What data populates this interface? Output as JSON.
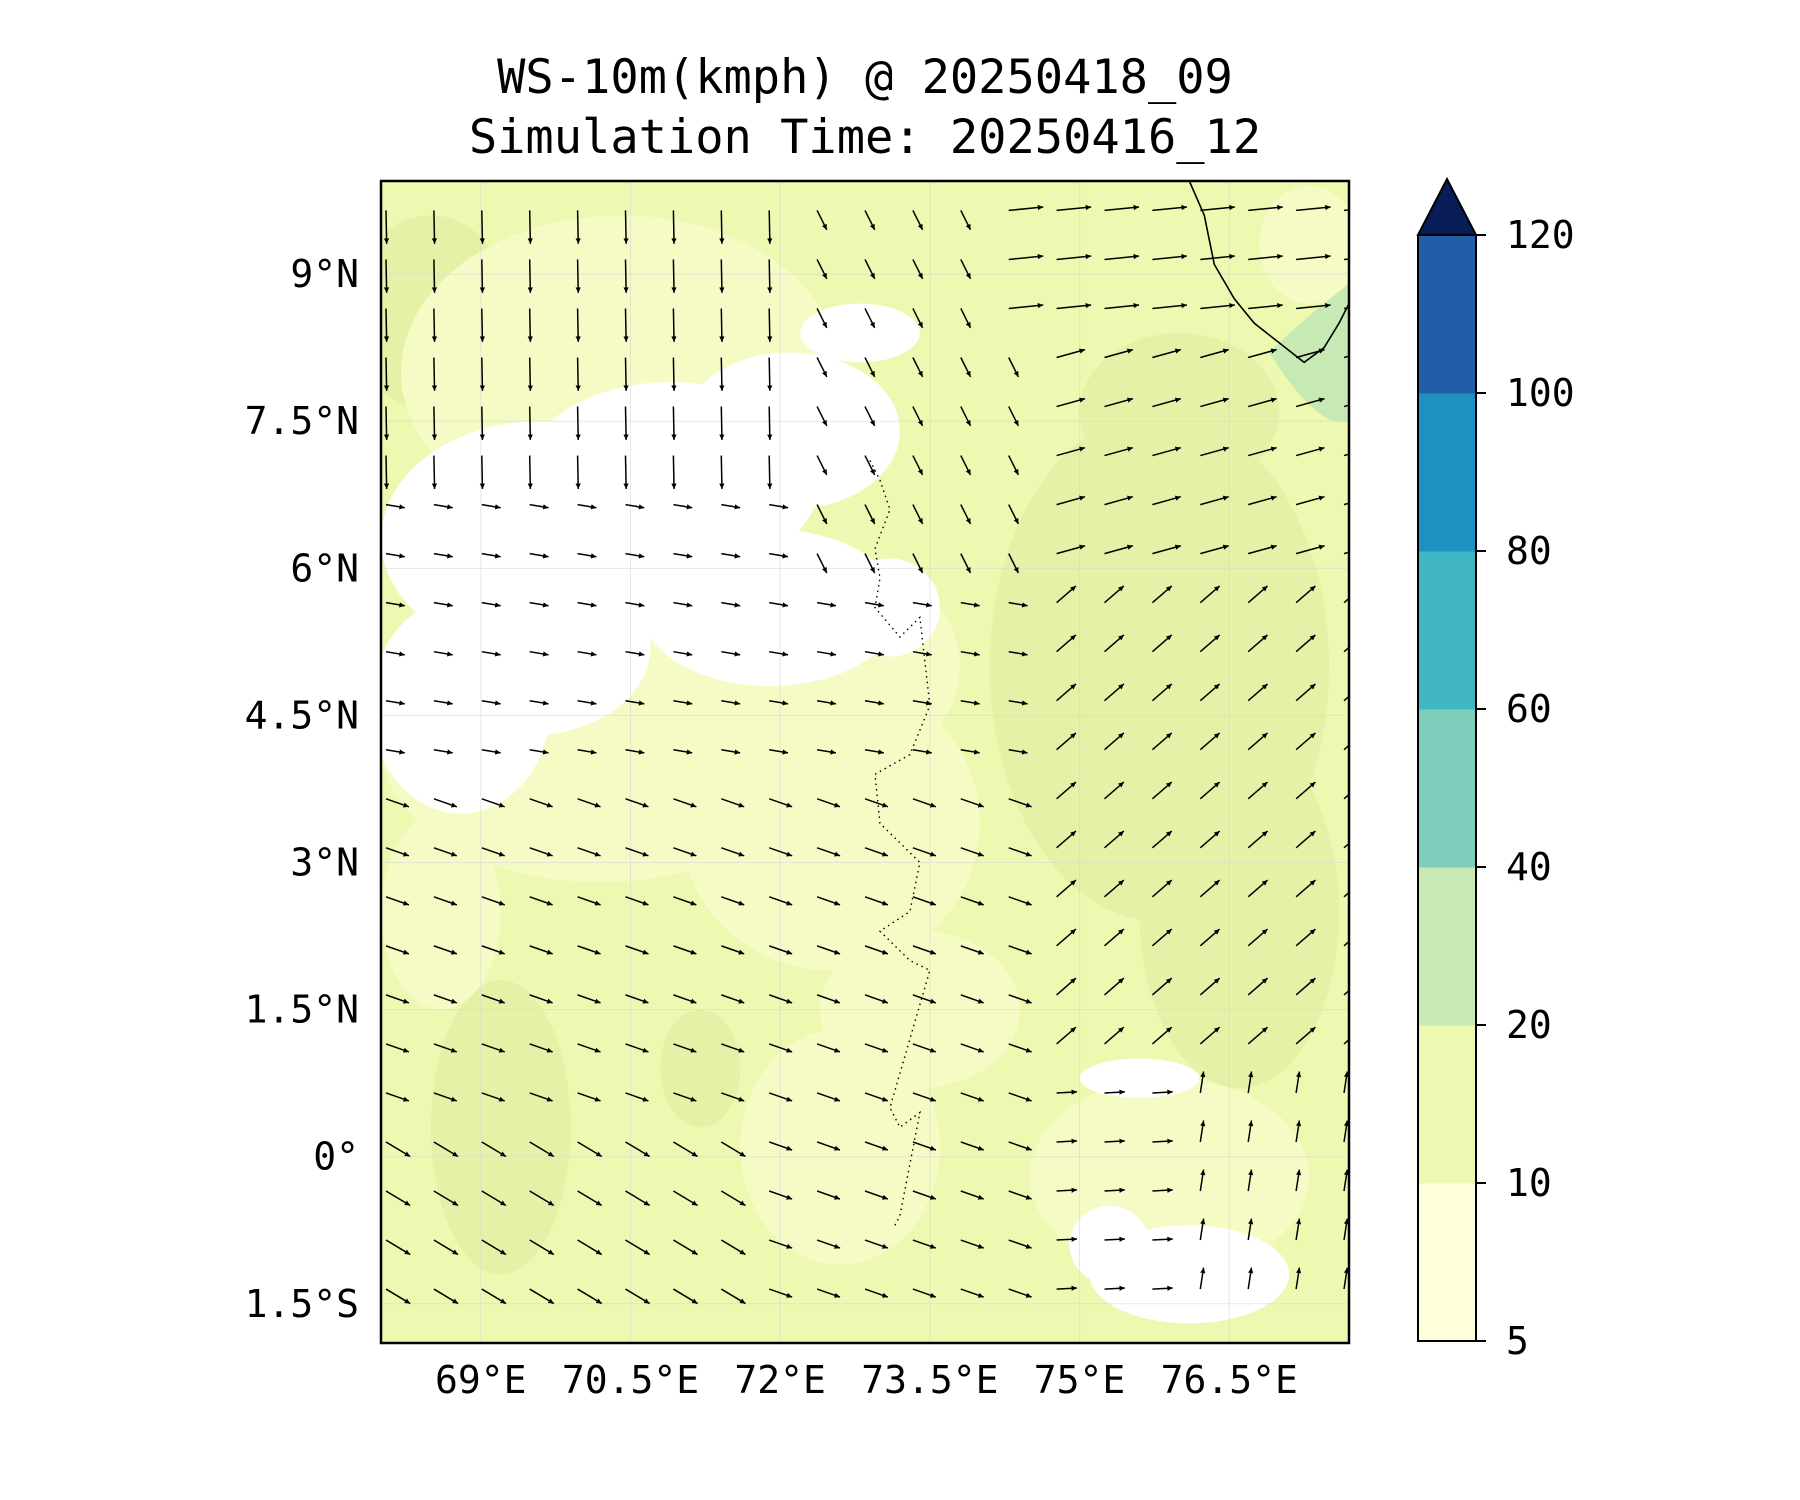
{
  "title": {
    "line1": "WS-10m(kmph) @ 20250418_09",
    "line2": "Simulation Time: 20250416_12"
  },
  "map": {
    "lon_range": [
      68.0,
      77.7
    ],
    "lat_range": [
      -1.9,
      9.95
    ],
    "x_ticks": [
      {
        "value": 69.0,
        "label": "69°E"
      },
      {
        "value": 70.5,
        "label": "70.5°E"
      },
      {
        "value": 72.0,
        "label": "72°E"
      },
      {
        "value": 73.5,
        "label": "73.5°E"
      },
      {
        "value": 75.0,
        "label": "75°E"
      },
      {
        "value": 76.5,
        "label": "76.5°E"
      }
    ],
    "y_ticks": [
      {
        "value": 9.0,
        "label": "9°N"
      },
      {
        "value": 7.5,
        "label": "7.5°N"
      },
      {
        "value": 6.0,
        "label": "6°N"
      },
      {
        "value": 4.5,
        "label": "4.5°N"
      },
      {
        "value": 3.0,
        "label": "3°N"
      },
      {
        "value": 1.5,
        "label": "1.5°N"
      },
      {
        "value": 0.0,
        "label": "0°"
      },
      {
        "value": -1.5,
        "label": "1.5°S"
      }
    ],
    "gridlines": true,
    "field": "wind speed 10 m",
    "vectors": "wind direction arrows"
  },
  "colorbar": {
    "levels": [
      5,
      10,
      20,
      40,
      60,
      80,
      100,
      120
    ],
    "colors": [
      "#ffffd9",
      "#edf8b1",
      "#c7e9b4",
      "#7fcdbb",
      "#41b6c4",
      "#1d91c0",
      "#225ea8",
      "#253494"
    ],
    "extend_color": "#081d58",
    "labels": [
      "5",
      "10",
      "20",
      "40",
      "60",
      "80",
      "100",
      "120"
    ]
  },
  "chart_data": {
    "type": "heatmap",
    "title": "WS-10m(kmph) @ 20250418_09",
    "subtitle": "Simulation Time: 20250416_12",
    "xlabel": "",
    "ylabel": "",
    "xlim": [
      68.0,
      77.7
    ],
    "ylim": [
      -1.9,
      9.95
    ],
    "color_levels": [
      5,
      10,
      20,
      40,
      60,
      80,
      100,
      120
    ],
    "grid": true
  }
}
